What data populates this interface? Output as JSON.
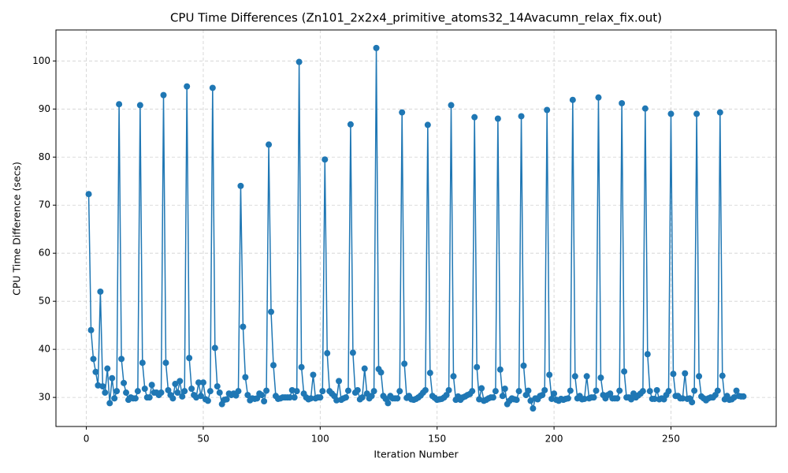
{
  "chart_data": {
    "type": "line",
    "title": "CPU Time Differences (Zn101_2x2x4_primitive_atoms32_14Avacumn_relax_fix.out)",
    "x_label": "Iteration Number",
    "y_label": "CPU Time Difference (secs)",
    "color": "#1f77b4",
    "grid": true,
    "xlim": [
      -13,
      295
    ],
    "ylim": [
      23.95,
      106.45
    ],
    "xticks": [
      0,
      50,
      100,
      150,
      200,
      250
    ],
    "yticks": [
      30,
      40,
      50,
      60,
      70,
      80,
      90,
      100
    ],
    "x": [
      1,
      2,
      3,
      4,
      5,
      6,
      7,
      8,
      9,
      10,
      11,
      12,
      13,
      14,
      15,
      16,
      17,
      18,
      19,
      20,
      21,
      22,
      23,
      24,
      25,
      26,
      27,
      28,
      29,
      30,
      31,
      32,
      33,
      34,
      35,
      36,
      37,
      38,
      39,
      40,
      41,
      42,
      43,
      44,
      45,
      46,
      47,
      48,
      49,
      50,
      51,
      52,
      53,
      54,
      55,
      56,
      57,
      58,
      59,
      60,
      61,
      62,
      63,
      64,
      65,
      66,
      67,
      68,
      69,
      70,
      71,
      72,
      73,
      74,
      75,
      76,
      77,
      78,
      79,
      80,
      81,
      82,
      83,
      84,
      85,
      86,
      87,
      88,
      89,
      90,
      91,
      92,
      93,
      94,
      95,
      96,
      97,
      98,
      99,
      100,
      101,
      102,
      103,
      104,
      105,
      106,
      107,
      108,
      109,
      110,
      111,
      112,
      113,
      114,
      115,
      116,
      117,
      118,
      119,
      120,
      121,
      122,
      123,
      124,
      125,
      126,
      127,
      128,
      129,
      130,
      131,
      132,
      133,
      134,
      135,
      136,
      137,
      138,
      139,
      140,
      141,
      142,
      143,
      144,
      145,
      146,
      147,
      148,
      149,
      150,
      151,
      152,
      153,
      154,
      155,
      156,
      157,
      158,
      159,
      160,
      161,
      162,
      163,
      164,
      165,
      166,
      167,
      168,
      169,
      170,
      171,
      172,
      173,
      174,
      175,
      176,
      177,
      178,
      179,
      180,
      181,
      182,
      183,
      184,
      185,
      186,
      187,
      188,
      189,
      190,
      191,
      192,
      193,
      194,
      195,
      196,
      197,
      198,
      199,
      200,
      201,
      202,
      203,
      204,
      205,
      206,
      207,
      208,
      209,
      210,
      211,
      212,
      213,
      214,
      215,
      216,
      217,
      218,
      219,
      220,
      221,
      222,
      223,
      224,
      225,
      226,
      227,
      228,
      229,
      230,
      231,
      232,
      233,
      234,
      235,
      236,
      237,
      238,
      239,
      240,
      241,
      242,
      243,
      244,
      245,
      246,
      247,
      248,
      249,
      250,
      251,
      252,
      253,
      254,
      255,
      256,
      257,
      258,
      259,
      260,
      261,
      262,
      263,
      264,
      265,
      266,
      267,
      268,
      269,
      270,
      271,
      272,
      273,
      274,
      275,
      276,
      277,
      278,
      279,
      280,
      281
    ],
    "values": [
      72.3,
      44,
      38,
      35.3,
      32.5,
      52,
      32.3,
      31,
      36,
      28.8,
      34,
      29.8,
      31.3,
      91,
      38,
      33,
      31,
      29.5,
      30,
      29.8,
      29.8,
      31.3,
      90.8,
      37.2,
      31.8,
      30,
      30,
      32.6,
      31,
      31,
      30.5,
      31,
      92.9,
      37.2,
      31.5,
      30.5,
      29.8,
      32.8,
      31,
      33.4,
      30.2,
      31.3,
      94.7,
      38.2,
      31.8,
      30.5,
      30,
      33.1,
      30.3,
      33.1,
      29.6,
      29.3,
      31.3,
      94.4,
      40.3,
      32.3,
      31,
      28.6,
      29.5,
      29.6,
      30.8,
      30.5,
      30.8,
      30.4,
      31.3,
      74,
      44.7,
      34.2,
      30.5,
      29.4,
      29.8,
      29.7,
      29.8,
      30.8,
      30.5,
      29.2,
      31.4,
      82.6,
      47.8,
      36.7,
      30.3,
      29.7,
      29.8,
      30,
      30,
      30,
      30,
      31.5,
      30,
      31.3,
      99.8,
      36.3,
      30.8,
      30,
      29.6,
      29.8,
      34.7,
      29.8,
      30,
      30,
      31.3,
      79.5,
      39.2,
      31.3,
      30.8,
      30.3,
      29.4,
      33.4,
      29.5,
      29.8,
      30,
      31.4,
      86.8,
      39.3,
      31,
      31.5,
      29.6,
      30,
      36,
      30.8,
      29.8,
      30.3,
      31.3,
      102.7,
      35.9,
      35.2,
      30.3,
      29.7,
      28.8,
      30.3,
      29.8,
      29.8,
      29.8,
      31.3,
      89.3,
      37,
      29.9,
      30.3,
      29.6,
      29.5,
      29.7,
      30,
      30.4,
      31,
      31.5,
      86.7,
      35.1,
      30.3,
      29.9,
      29.5,
      29.6,
      29.7,
      30,
      30.5,
      31.5,
      90.8,
      34.4,
      29.5,
      30.2,
      29.5,
      30,
      30.2,
      30.5,
      30.7,
      31.3,
      88.3,
      36.3,
      29.6,
      31.9,
      29.3,
      29.5,
      29.8,
      30,
      30,
      31.3,
      88,
      35.8,
      30.3,
      31.8,
      28.6,
      29.3,
      29.8,
      29.6,
      29.5,
      31.3,
      88.5,
      36.6,
      30.5,
      31.4,
      29.3,
      27.7,
      29.8,
      29.6,
      30.3,
      30.5,
      31.5,
      89.8,
      34.7,
      29.7,
      30.8,
      29.5,
      29.3,
      29.7,
      29.5,
      29.7,
      29.8,
      31.4,
      91.9,
      34.4,
      29.8,
      30.3,
      29.6,
      29.7,
      34.4,
      29.8,
      30,
      30,
      31.4,
      92.4,
      34.1,
      30.5,
      29.8,
      30.5,
      30.8,
      29.8,
      29.8,
      29.8,
      31.4,
      91.2,
      35.4,
      30,
      30,
      29.6,
      30.8,
      30,
      30.4,
      30.8,
      31.3,
      90.1,
      39,
      31.3,
      29.7,
      29.7,
      31.5,
      29.6,
      29.8,
      29.6,
      30.5,
      31.3,
      89,
      34.9,
      30.3,
      30.3,
      29.8,
      29.8,
      35,
      29.7,
      29.8,
      29,
      31.4,
      89,
      34.4,
      30.2,
      29.8,
      29.4,
      29.8,
      30,
      30,
      30.5,
      31.4,
      89.3,
      34.5,
      29.6,
      30.3,
      29.5,
      29.6,
      30,
      31.4,
      30.3,
      30.2,
      30.2
    ]
  }
}
